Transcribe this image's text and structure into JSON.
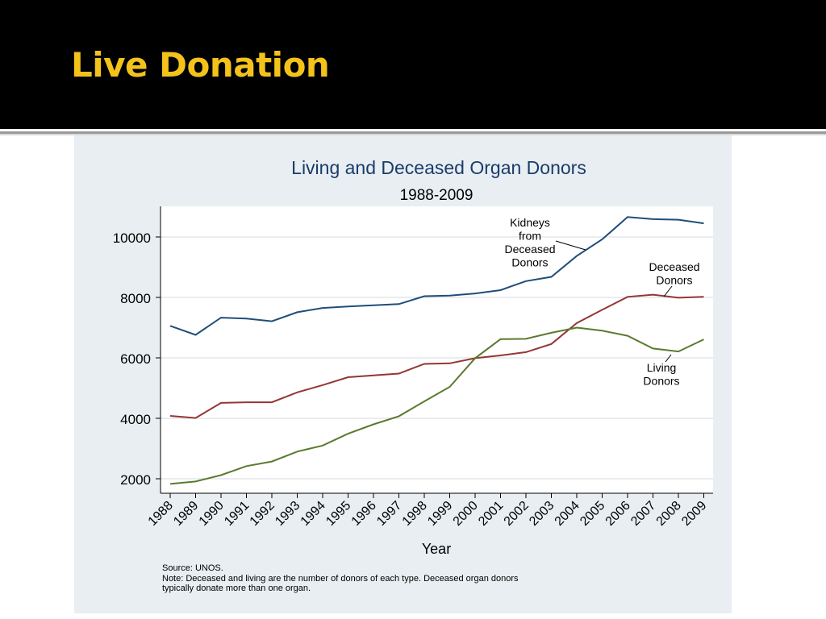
{
  "slide": {
    "title": "Live Donation"
  },
  "source_note": {
    "line1": "Source: UNOS.",
    "line2": "Note: Deceased and living are the number of donors of each type. Deceased organ donors",
    "line3": "typically donate more than one organ."
  },
  "colors": {
    "header_bg": "#000000",
    "title": "#f3c21b",
    "panel_bg": "#e8eef1",
    "chart_title": "#1a3c6b",
    "kidneys": "#1f4e79",
    "deceased": "#943634",
    "living": "#5a7a2e"
  },
  "chart_data": {
    "type": "line",
    "title": "Living and Deceased Organ Donors",
    "subtitle": "1988-2009",
    "xlabel": "Year",
    "ylabel": "",
    "x": [
      "1988",
      "1989",
      "1990",
      "1991",
      "1992",
      "1993",
      "1994",
      "1995",
      "1996",
      "1997",
      "1998",
      "1999",
      "2000",
      "2001",
      "2002",
      "2003",
      "2004",
      "2005",
      "2006",
      "2007",
      "2008",
      "2009"
    ],
    "yticks": [
      "2000",
      "4000",
      "6000",
      "8000",
      "10000"
    ],
    "ylim": [
      1500,
      11000
    ],
    "grid": true,
    "series": [
      {
        "name": "Kidneys from Deceased Donors",
        "label_lines": [
          "Kidneys",
          "from",
          "Deceased",
          "Donors"
        ],
        "color": "#1f4e79",
        "values": [
          7060,
          6760,
          7330,
          7300,
          7210,
          7510,
          7650,
          7700,
          7740,
          7780,
          8040,
          8060,
          8130,
          8240,
          8540,
          8680,
          9370,
          9920,
          10660,
          10590,
          10570,
          10450
        ]
      },
      {
        "name": "Deceased Donors",
        "label_lines": [
          "Deceased",
          "Donors"
        ],
        "color": "#943634",
        "values": [
          4080,
          4010,
          4510,
          4530,
          4530,
          4860,
          5100,
          5360,
          5420,
          5480,
          5800,
          5820,
          5990,
          6080,
          6190,
          6460,
          7150,
          7590,
          8020,
          8090,
          7990,
          8020
        ]
      },
      {
        "name": "Living Donors",
        "label_lines": [
          "Living",
          "Donors"
        ],
        "color": "#5a7a2e",
        "values": [
          1830,
          1910,
          2120,
          2420,
          2570,
          2900,
          3100,
          3490,
          3800,
          4070,
          4560,
          5040,
          5990,
          6620,
          6630,
          6830,
          7000,
          6900,
          6730,
          6310,
          6210,
          6610
        ]
      }
    ]
  }
}
